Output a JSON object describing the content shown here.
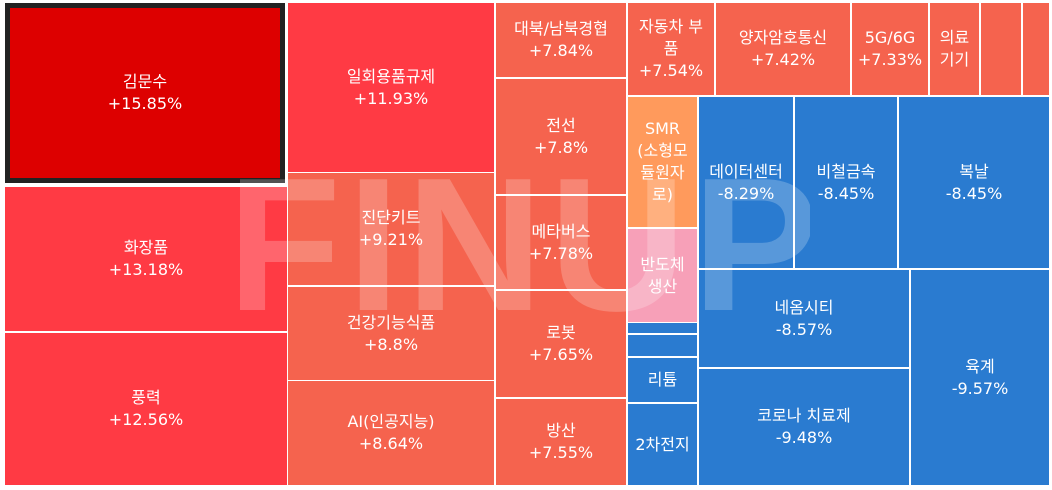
{
  "colors": {
    "strong_red": "#dd0000",
    "red": "#ff3a44",
    "light_red": "#f5634e",
    "orange": "#ff9a5c",
    "pink": "#f7a0b8",
    "blue": "#2a7bd0",
    "selected_border": "#222222"
  },
  "watermark": "FINUP",
  "chart_data": {
    "type": "treemap",
    "items": [
      {
        "name": "김문수",
        "change": "+15.85%",
        "value": 15.85,
        "color": "#dd0000",
        "selected": true
      },
      {
        "name": "화장품",
        "change": "+13.18%",
        "value": 13.18,
        "color": "#ff3a44"
      },
      {
        "name": "풍력",
        "change": "+12.56%",
        "value": 12.56,
        "color": "#ff3a44"
      },
      {
        "name": "일회용품규제",
        "change": "+11.93%",
        "value": 11.93,
        "color": "#ff3a44"
      },
      {
        "name": "진단키트",
        "change": "+9.21%",
        "value": 9.21,
        "color": "#f5634e"
      },
      {
        "name": "건강기능식품",
        "change": "+8.8%",
        "value": 8.8,
        "color": "#f5634e"
      },
      {
        "name": "AI(인공지능)",
        "change": "+8.64%",
        "value": 8.64,
        "color": "#f5634e"
      },
      {
        "name": "대북/남북경협",
        "change": "+7.84%",
        "value": 7.84,
        "color": "#f5634e"
      },
      {
        "name": "전선",
        "change": "+7.8%",
        "value": 7.8,
        "color": "#f5634e"
      },
      {
        "name": "메타버스",
        "change": "+7.78%",
        "value": 7.78,
        "color": "#f5634e"
      },
      {
        "name": "로봇",
        "change": "+7.65%",
        "value": 7.65,
        "color": "#f5634e"
      },
      {
        "name": "방산",
        "change": "+7.55%",
        "value": 7.55,
        "color": "#f5634e"
      },
      {
        "name": "자동차 부품",
        "change": "+7.54%",
        "value": 7.54,
        "color": "#f5634e"
      },
      {
        "name": "양자암호통신",
        "change": "+7.42%",
        "value": 7.42,
        "color": "#f5634e"
      },
      {
        "name": "5G/6G",
        "change": "+7.33%",
        "value": 7.33,
        "color": "#f5634e"
      },
      {
        "name": "의료기기",
        "change": "",
        "value": null,
        "color": "#f5634e"
      },
      {
        "name": "",
        "change": "",
        "value": null,
        "color": "#f5634e"
      },
      {
        "name": "",
        "change": "",
        "value": null,
        "color": "#f5634e"
      },
      {
        "name": "SMR(소형모듈원자로)",
        "change": "",
        "value": null,
        "color": "#ff9a5c"
      },
      {
        "name": "반도체생산",
        "change": "",
        "value": null,
        "color": "#f7a0b8"
      },
      {
        "name": "",
        "change": "",
        "value": null,
        "color": "#2a7bd0"
      },
      {
        "name": "",
        "change": "",
        "value": null,
        "color": "#2a7bd0"
      },
      {
        "name": "리튬",
        "change": "",
        "value": null,
        "color": "#2a7bd0"
      },
      {
        "name": "2차전지",
        "change": "",
        "value": null,
        "color": "#2a7bd0"
      },
      {
        "name": "데이터센터",
        "change": "-8.29%",
        "value": -8.29,
        "color": "#2a7bd0"
      },
      {
        "name": "비철금속",
        "change": "-8.45%",
        "value": -8.45,
        "color": "#2a7bd0"
      },
      {
        "name": "복날",
        "change": "-8.45%",
        "value": -8.45,
        "color": "#2a7bd0"
      },
      {
        "name": "네옴시티",
        "change": "-8.57%",
        "value": -8.57,
        "color": "#2a7bd0"
      },
      {
        "name": "육계",
        "change": "-9.57%",
        "value": -9.57,
        "color": "#2a7bd0"
      },
      {
        "name": "코로나 치료제",
        "change": "-9.48%",
        "value": -9.48,
        "color": "#2a7bd0"
      }
    ]
  }
}
